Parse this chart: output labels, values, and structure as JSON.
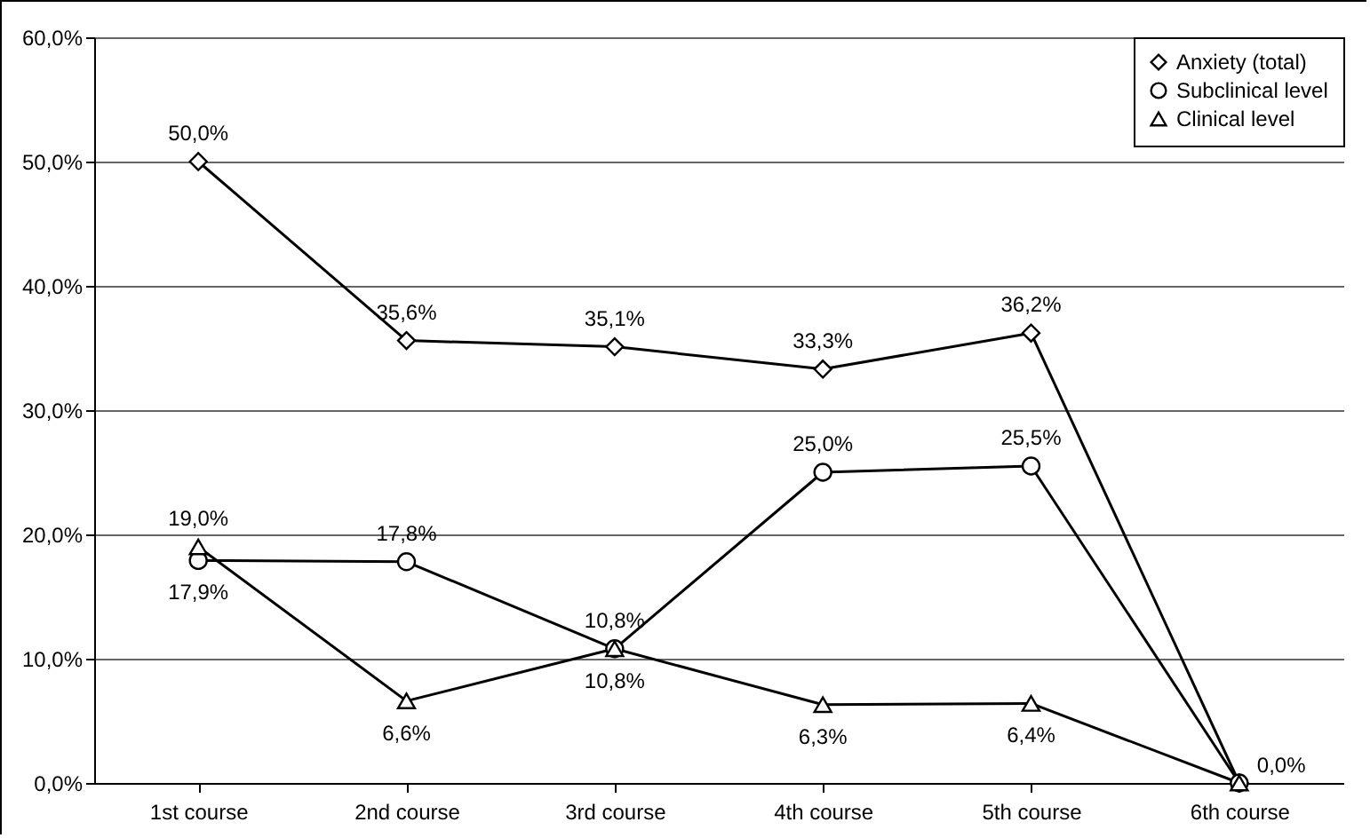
{
  "chart_data": {
    "type": "line",
    "categories": [
      "1st course",
      "2nd course",
      "3rd course",
      "4th course",
      "5th course",
      "6th course"
    ],
    "ylim": [
      0,
      60
    ],
    "yticks": [
      {
        "value": 0,
        "label": "0,0%"
      },
      {
        "value": 10,
        "label": "10,0%"
      },
      {
        "value": 20,
        "label": "20,0%"
      },
      {
        "value": 30,
        "label": "30,0%"
      },
      {
        "value": 40,
        "label": "40,0%"
      },
      {
        "value": 50,
        "label": "50,0%"
      },
      {
        "value": 60,
        "label": "60,0%"
      }
    ],
    "grid": "y",
    "legend": "top right",
    "series": [
      {
        "name": "Anxiety (total)",
        "color": "#000000",
        "marker": "diamond",
        "values": [
          50.0,
          35.6,
          35.1,
          33.3,
          36.2,
          0.0
        ],
        "value_labels": [
          "50,0%",
          "35,6%",
          "35,1%",
          "33,3%",
          "36,2%",
          "0,0%"
        ]
      },
      {
        "name": "Subclinical level",
        "color": "#000000",
        "marker": "circle",
        "values": [
          17.9,
          17.8,
          10.8,
          25.0,
          25.5,
          0.0
        ],
        "value_labels": [
          "17,9%",
          "17,8%",
          "10,8%",
          "25,0%",
          "25,5%",
          null
        ]
      },
      {
        "name": "Clinical level",
        "color": "#000000",
        "marker": "triangle",
        "values": [
          19.0,
          6.6,
          10.8,
          6.3,
          6.4,
          0.0
        ],
        "value_labels": [
          "19,0%",
          "6,6%",
          "10,8%",
          "6,3%",
          "6,4%",
          null
        ]
      }
    ]
  }
}
